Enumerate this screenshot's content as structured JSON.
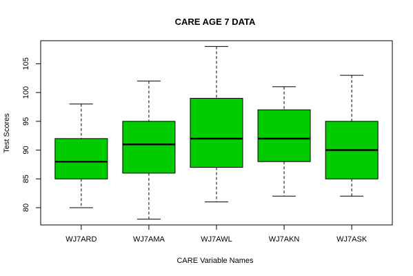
{
  "chart_data": {
    "type": "boxplot",
    "title": "CARE AGE 7 DATA",
    "xlabel": "CARE Variable Names",
    "ylabel": "Test Scores",
    "ylim": [
      77,
      109
    ],
    "yticks": [
      80,
      85,
      90,
      95,
      100,
      105
    ],
    "grid": false,
    "legend": "none",
    "box_color": "#00cc00",
    "categories": [
      "WJ7ARD",
      "WJ7AMA",
      "WJ7AWL",
      "WJ7AKN",
      "WJ7ASK"
    ],
    "boxes": [
      {
        "min": 80,
        "q1": 85,
        "median": 88,
        "q3": 92,
        "max": 98
      },
      {
        "min": 78,
        "q1": 86,
        "median": 91,
        "q3": 95,
        "max": 102
      },
      {
        "min": 81,
        "q1": 87,
        "median": 92,
        "q3": 99,
        "max": 108
      },
      {
        "min": 82,
        "q1": 88,
        "median": 92,
        "q3": 97,
        "max": 101
      },
      {
        "min": 82,
        "q1": 85,
        "median": 90,
        "q3": 95,
        "max": 103
      }
    ]
  }
}
